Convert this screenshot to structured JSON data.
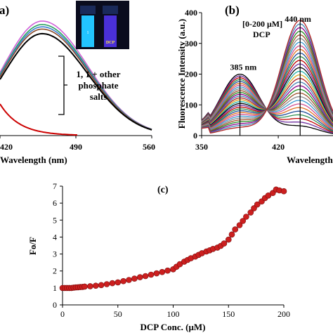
{
  "chart_data": [
    {
      "type": "line",
      "panel_label": "a)",
      "xlabel": "Wavelength (nm)",
      "ylabel": "",
      "xlim": [
        420,
        560
      ],
      "x_ticks": [
        "420",
        "490",
        "560"
      ],
      "x_tick_values": [
        420,
        490,
        560
      ],
      "annotation": [
        "1, 1 + other",
        "phosphate",
        "salts"
      ],
      "inset": {
        "label_left": "1",
        "label_right": "DCP",
        "left_color": "#22c4ff",
        "right_color": "#5a3cf0",
        "bg": "#0a0c1e"
      },
      "series": [
        {
          "color": "#d060d8",
          "peak": 1.0
        },
        {
          "color": "#2aa060",
          "peak": 0.97
        },
        {
          "color": "#3a7fd0",
          "peak": 0.95
        },
        {
          "color": "#8a4a2a",
          "peak": 0.93
        },
        {
          "color": "#000000",
          "peak": 0.89
        }
      ],
      "red_series": {
        "color": "#cc0000",
        "desc": "quenched"
      }
    },
    {
      "type": "line",
      "panel_label": "(b)",
      "xlabel": "Wavelength",
      "ylabel": "Fluorescence Intensity (a.u.)",
      "ylim": [
        0,
        400
      ],
      "y_ticks": [
        "0",
        "100",
        "200",
        "300",
        "400"
      ],
      "y_tick_values": [
        0,
        100,
        200,
        300,
        400
      ],
      "x_ticks": [
        "350",
        "420"
      ],
      "x_tick_values": [
        350,
        420
      ],
      "xlim": [
        350,
        470
      ],
      "conc_label": [
        "[0-200 μM]",
        "DCP"
      ],
      "peak_labels": [
        {
          "text": "385 nm",
          "x": 385,
          "y": 200
        },
        {
          "text": "440 nm",
          "x": 440,
          "y": 375
        }
      ],
      "series_colors": [
        "#000000",
        "#7030a0",
        "#c00000",
        "#2f8f4f",
        "#1f4e9a",
        "#e07020",
        "#d05090",
        "#3a9ad0",
        "#888888",
        "#a0522d",
        "#228b22",
        "#8b008b",
        "#4682b4",
        "#b22222",
        "#daa520",
        "#20b2aa"
      ]
    },
    {
      "type": "scatter",
      "panel_label": "(c)",
      "xlabel": "DCP Conc. (μM)",
      "ylabel": "Fo/F",
      "xlim": [
        0,
        200
      ],
      "ylim": [
        0,
        7
      ],
      "x_ticks": [
        "0",
        "50",
        "100",
        "150",
        "200"
      ],
      "x_tick_values": [
        0,
        50,
        100,
        150,
        200
      ],
      "y_ticks": [
        "0",
        "1",
        "2",
        "3",
        "4",
        "5",
        "6",
        "7"
      ],
      "y_tick_values": [
        0,
        1,
        2,
        3,
        4,
        5,
        6,
        7
      ],
      "marker_color": "#cc1f1f",
      "line_color": "#3355aa",
      "x": [
        0,
        2,
        4,
        6,
        8,
        10,
        12,
        14,
        16,
        18,
        20,
        25,
        30,
        35,
        40,
        45,
        50,
        55,
        60,
        65,
        70,
        75,
        80,
        85,
        90,
        95,
        100,
        103,
        106,
        110,
        113,
        116,
        120,
        123,
        126,
        130,
        133,
        136,
        140,
        143,
        146,
        150,
        153,
        156,
        160,
        163,
        166,
        170,
        173,
        176,
        180,
        183,
        186,
        190,
        193,
        196,
        200
      ],
      "y": [
        1.0,
        1.0,
        1.0,
        1.0,
        1.0,
        1.02,
        1.03,
        1.04,
        1.05,
        1.06,
        1.08,
        1.1,
        1.13,
        1.17,
        1.22,
        1.28,
        1.33,
        1.4,
        1.47,
        1.55,
        1.63,
        1.7,
        1.78,
        1.86,
        1.94,
        2.02,
        2.1,
        2.25,
        2.4,
        2.55,
        2.65,
        2.75,
        2.85,
        2.95,
        3.05,
        3.15,
        3.22,
        3.3,
        3.38,
        3.48,
        3.62,
        3.85,
        4.15,
        4.45,
        4.7,
        4.95,
        5.2,
        5.45,
        5.7,
        5.92,
        6.1,
        6.3,
        6.45,
        6.6,
        6.8,
        6.75,
        6.7
      ]
    }
  ]
}
